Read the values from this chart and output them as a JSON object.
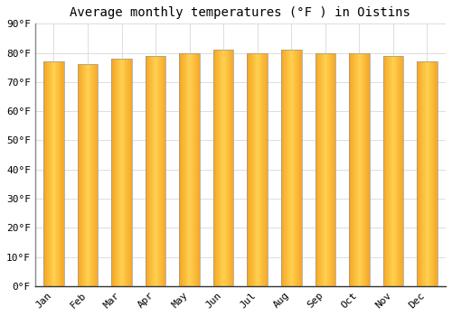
{
  "title": "Average monthly temperatures (°F ) in Oistins",
  "months": [
    "Jan",
    "Feb",
    "Mar",
    "Apr",
    "May",
    "Jun",
    "Jul",
    "Aug",
    "Sep",
    "Oct",
    "Nov",
    "Dec"
  ],
  "values": [
    77,
    76,
    78,
    79,
    80,
    81,
    80,
    81,
    80,
    80,
    79,
    77
  ],
  "ylim": [
    0,
    90
  ],
  "yticks": [
    0,
    10,
    20,
    30,
    40,
    50,
    60,
    70,
    80,
    90
  ],
  "ytick_labels": [
    "0°F",
    "10°F",
    "20°F",
    "30°F",
    "40°F",
    "50°F",
    "60°F",
    "70°F",
    "80°F",
    "90°F"
  ],
  "bar_color_left": "#F5A623",
  "bar_color_center": "#FFD050",
  "bar_color_right": "#F5A623",
  "bar_edge_color": "#999999",
  "background_color": "#FFFFFF",
  "plot_bg_color": "#FFFFFF",
  "grid_color": "#DDDDDD",
  "title_fontsize": 10,
  "tick_fontsize": 8,
  "font_family": "monospace",
  "bar_width": 0.6
}
